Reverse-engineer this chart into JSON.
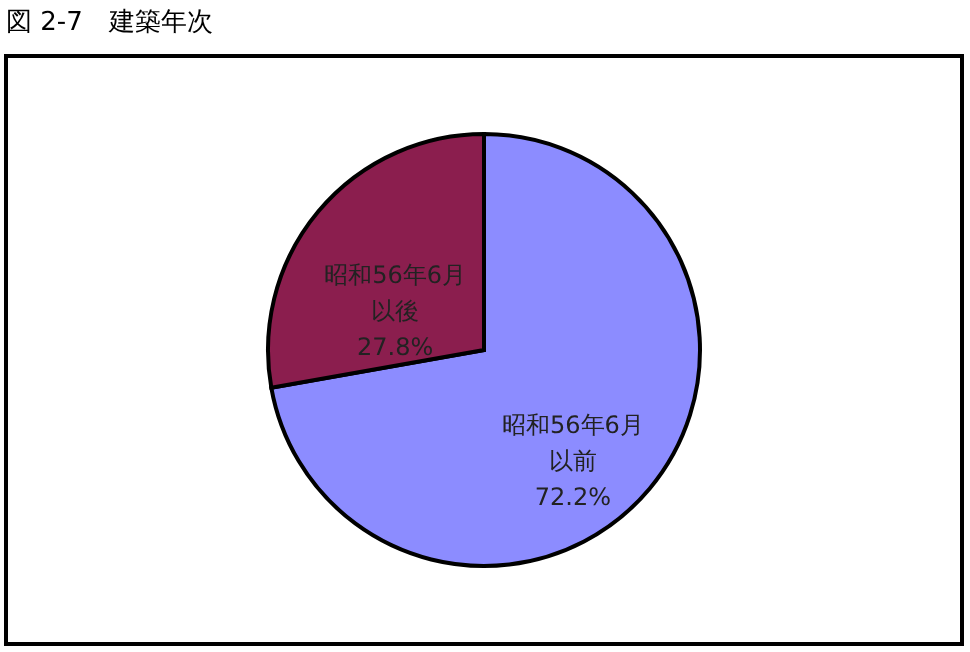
{
  "chart_data": {
    "type": "pie",
    "title": "図 2-7　建築年次",
    "categories": [
      "昭和56年6月以前",
      "昭和56年6月以後"
    ],
    "values": [
      72.2,
      27.8
    ],
    "value_labels": [
      "72.2%",
      "27.8%"
    ],
    "colors": [
      "#8c8cff",
      "#8b1e4e"
    ],
    "legend": false
  }
}
